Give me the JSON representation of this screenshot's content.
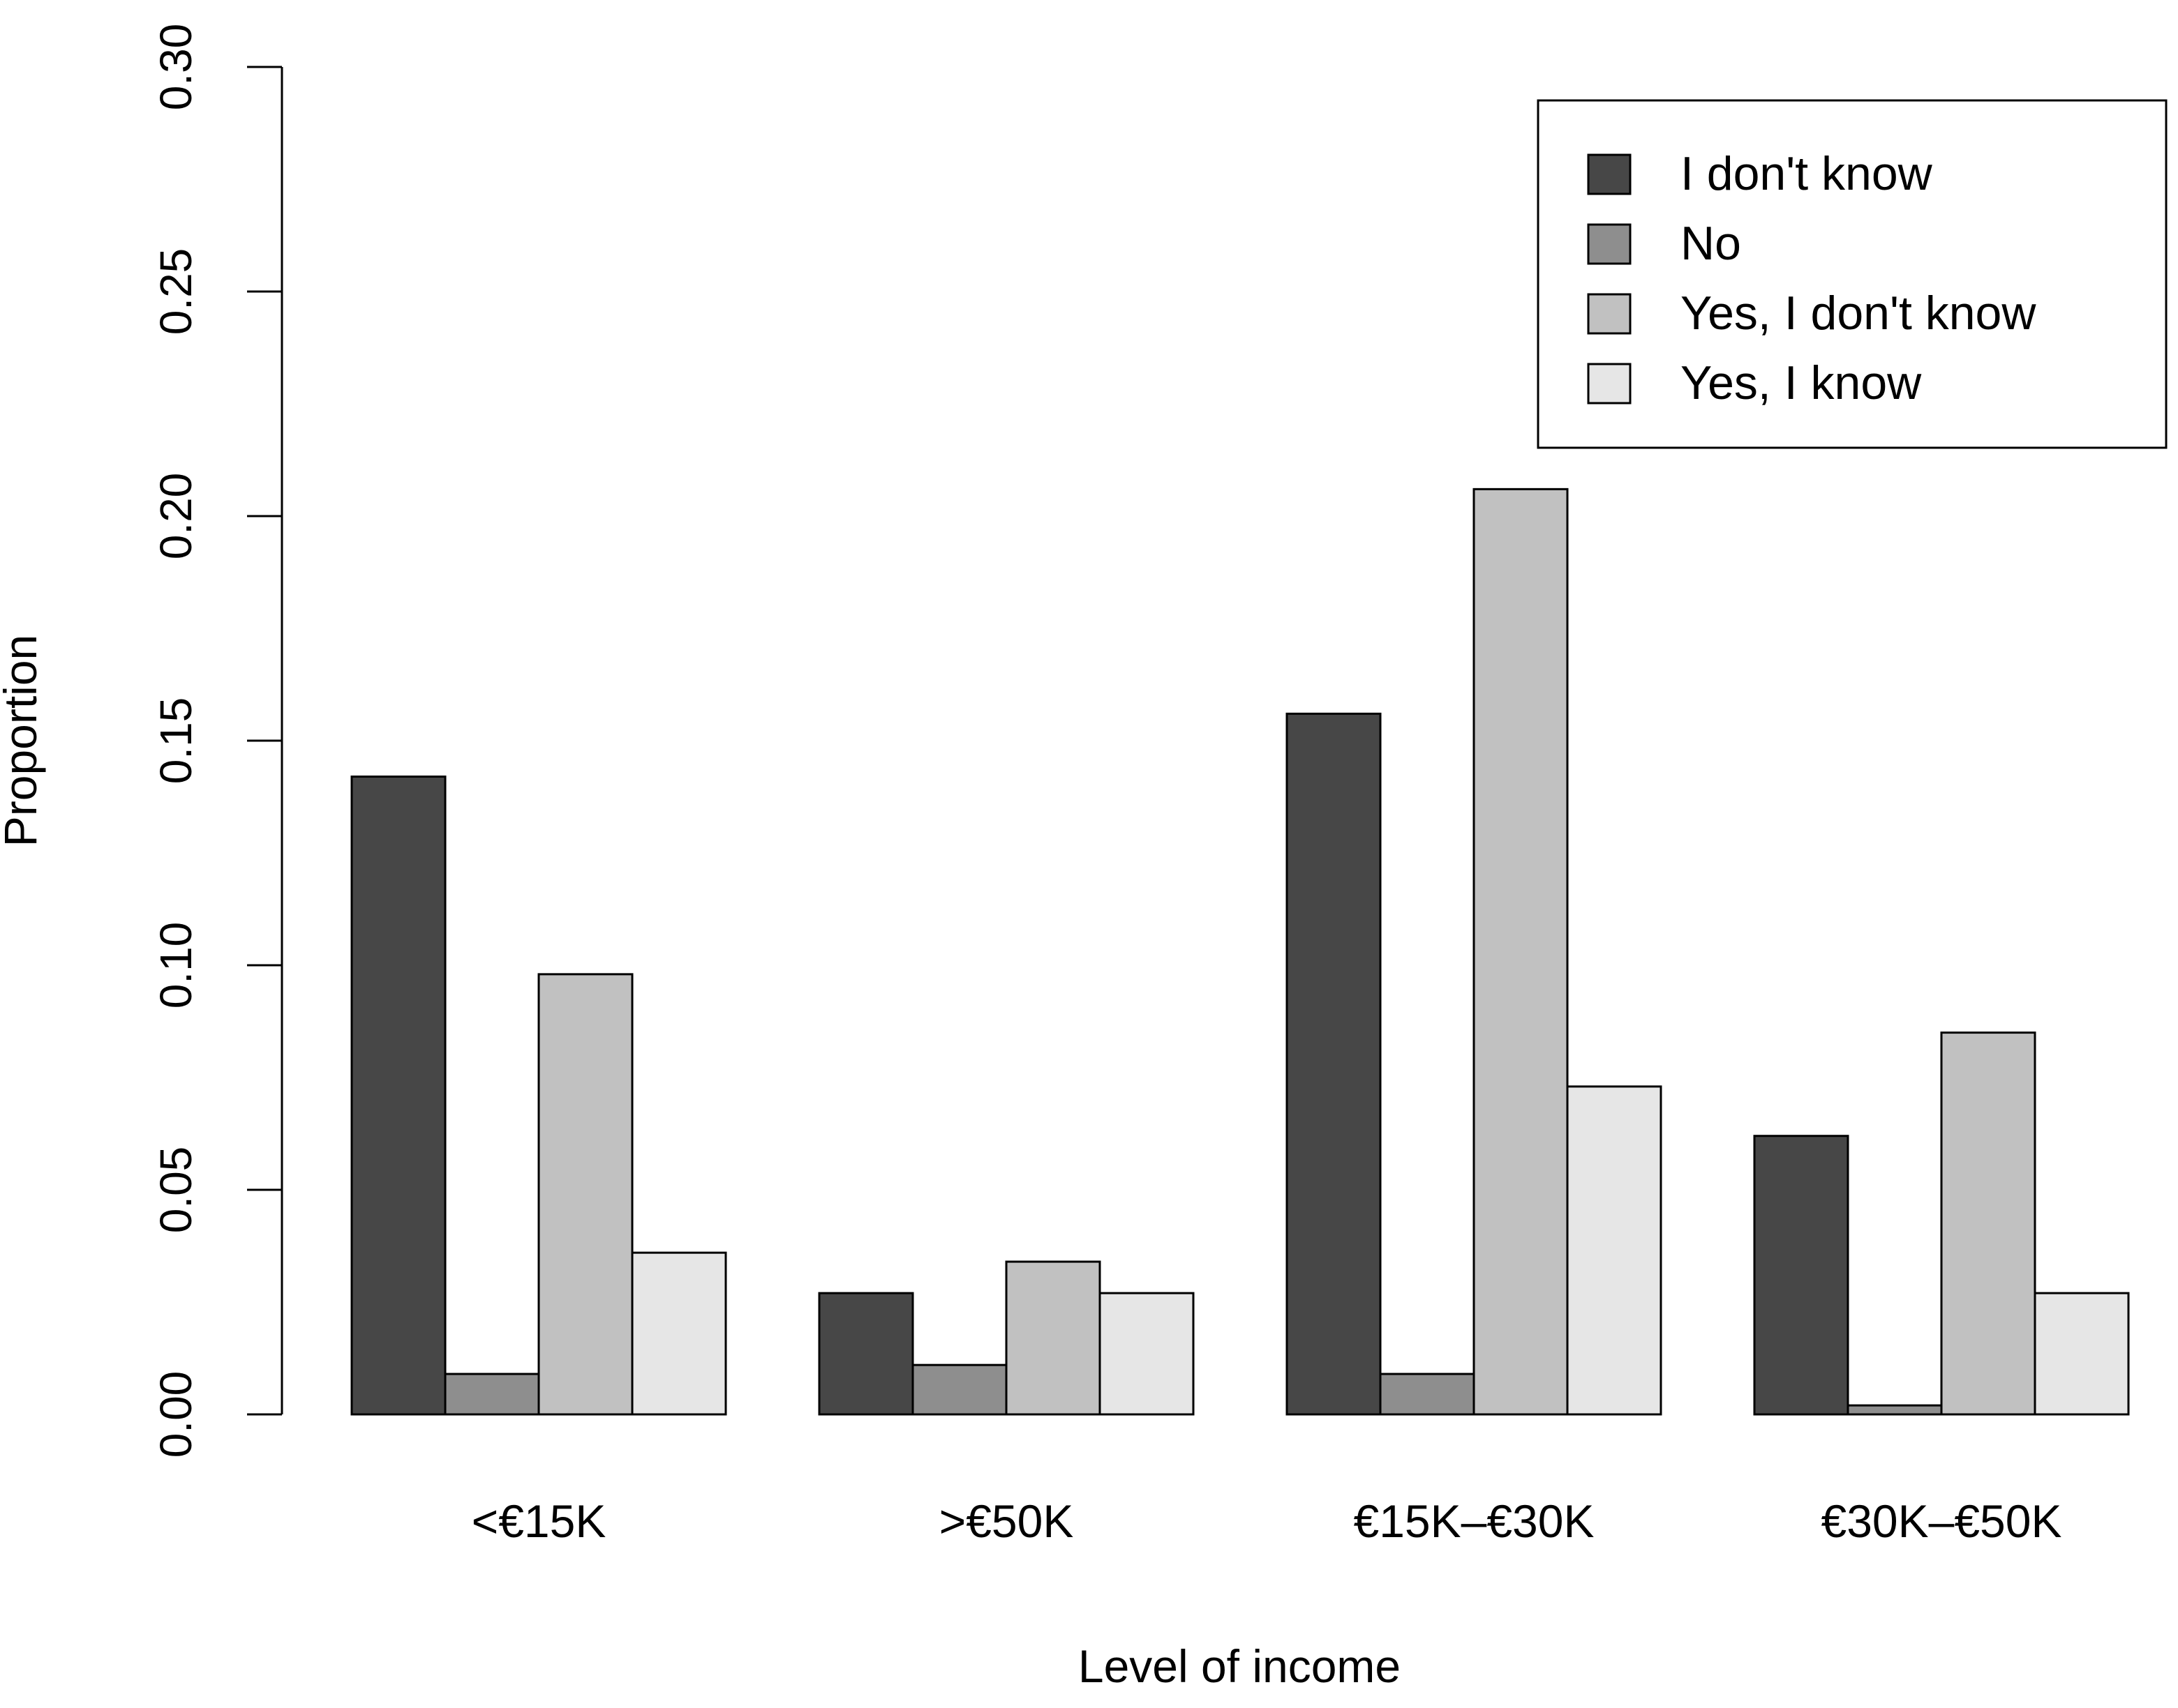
{
  "chart_data": {
    "type": "bar",
    "title": "",
    "xlabel": "Level of income",
    "ylabel": "Proportion",
    "ylim": [
      0,
      0.3
    ],
    "yticks": [
      "0.00",
      "0.05",
      "0.10",
      "0.15",
      "0.20",
      "0.25",
      "0.30"
    ],
    "categories": [
      "<€15K",
      ">€50K",
      "€15K–€30K",
      "€30K–€50K"
    ],
    "series": [
      {
        "name": "I don't know",
        "color": "#474747",
        "values": [
          0.142,
          0.027,
          0.156,
          0.062
        ]
      },
      {
        "name": "No",
        "color": "#8e8e8e",
        "values": [
          0.009,
          0.011,
          0.009,
          0.002
        ]
      },
      {
        "name": "Yes, I don't know",
        "color": "#c1c1c1",
        "values": [
          0.098,
          0.034,
          0.206,
          0.085
        ]
      },
      {
        "name": "Yes, I know",
        "color": "#e6e6e6",
        "values": [
          0.036,
          0.027,
          0.073,
          0.027
        ]
      }
    ],
    "grid": false,
    "legend_position": "top-right"
  }
}
